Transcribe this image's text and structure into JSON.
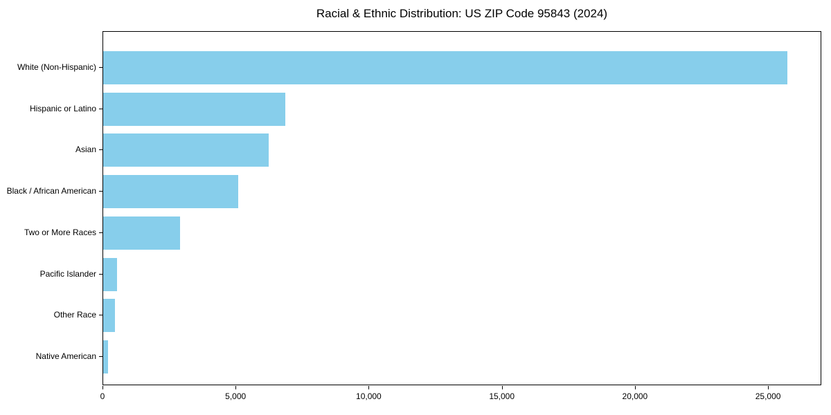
{
  "chart_data": {
    "type": "bar",
    "orientation": "horizontal",
    "title": "Racial & Ethnic Distribution: US ZIP Code 95843 (2024)",
    "categories": [
      "White (Non-Hispanic)",
      "Hispanic or Latino",
      "Asian",
      "Black / African American",
      "Two or More Races",
      "Pacific Islander",
      "Other Race",
      "Native American"
    ],
    "values": [
      25700,
      6850,
      6210,
      5070,
      2890,
      520,
      450,
      170
    ],
    "bar_color": "#87CEEB",
    "xlabel": "",
    "ylabel": "",
    "xlim": [
      0,
      27000
    ],
    "xticks": [
      0,
      5000,
      10000,
      15000,
      20000,
      25000
    ],
    "xtick_labels": [
      "0",
      "5,000",
      "10,000",
      "15,000",
      "20,000",
      "25,000"
    ],
    "grid": false,
    "legend": "none",
    "background_color": "#ffffff",
    "axis_color": "#000000"
  }
}
